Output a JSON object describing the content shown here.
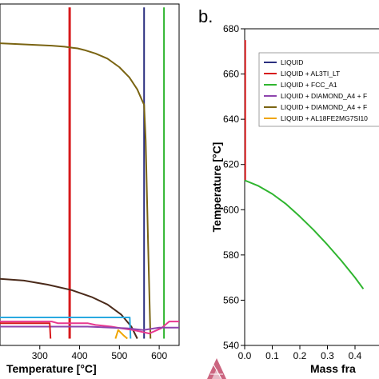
{
  "panel_labels": {
    "left": "",
    "right": "b."
  },
  "chart_data": [
    {
      "panel": "left",
      "type": "line",
      "title": "",
      "xlabel": "Temperature [°C]",
      "ylabel": "",
      "xlim": [
        200,
        650
      ],
      "x_ticks": [
        "300",
        "400",
        "500",
        "600"
      ],
      "series": [
        {
          "color": "#d7191c",
          "points": [
            [
              375,
              0.99
            ],
            [
              375,
              0.02
            ]
          ]
        },
        {
          "color": "#2b2f7f",
          "points": [
            [
              562,
              0.99
            ],
            [
              562,
              0.02
            ]
          ]
        },
        {
          "color": "#2fb52f",
          "points": [
            [
              612,
              0.99
            ],
            [
              612,
              0.02
            ]
          ]
        },
        {
          "color": "#7a6412",
          "points": [
            [
              200,
              0.885
            ],
            [
              292,
              0.88
            ],
            [
              330,
              0.878
            ],
            [
              362,
              0.875
            ],
            [
              382,
              0.872
            ],
            [
              395,
              0.87
            ],
            [
              412,
              0.865
            ],
            [
              440,
              0.855
            ],
            [
              470,
              0.84
            ],
            [
              500,
              0.815
            ],
            [
              525,
              0.785
            ],
            [
              545,
              0.75
            ],
            [
              558,
              0.715
            ],
            [
              562,
              0.705
            ],
            [
              566,
              0.6
            ],
            [
              572,
              0.3
            ],
            [
              578,
              0.02
            ]
          ]
        },
        {
          "color": "#4a2a1a",
          "points": [
            [
              200,
              0.195
            ],
            [
              260,
              0.19
            ],
            [
              320,
              0.178
            ],
            [
              380,
              0.162
            ],
            [
              430,
              0.142
            ],
            [
              470,
              0.12
            ],
            [
              505,
              0.09
            ],
            [
              530,
              0.055
            ],
            [
              545,
              0.02
            ]
          ]
        },
        {
          "color": "#29a9e0",
          "points": [
            [
              200,
              0.082
            ],
            [
              300,
              0.082
            ],
            [
              400,
              0.082
            ],
            [
              500,
              0.082
            ],
            [
              526,
              0.082
            ],
            [
              528,
              0.02
            ]
          ]
        },
        {
          "color": "#e8388f",
          "points": [
            [
              200,
              0.07
            ],
            [
              330,
              0.07
            ],
            [
              345,
              0.065
            ],
            [
              420,
              0.065
            ],
            [
              440,
              0.06
            ],
            [
              480,
              0.055
            ],
            [
              505,
              0.05
            ],
            [
              535,
              0.045
            ],
            [
              555,
              0.04
            ],
            [
              575,
              0.035
            ],
            [
              605,
              0.05
            ],
            [
              625,
              0.07
            ],
            [
              650,
              0.07
            ]
          ]
        },
        {
          "color": "#8e44ad",
          "points": [
            [
              200,
              0.055
            ],
            [
              420,
              0.055
            ],
            [
              520,
              0.05
            ],
            [
              560,
              0.045
            ],
            [
              600,
              0.052
            ],
            [
              650,
              0.052
            ]
          ]
        },
        {
          "color": "#d7191c",
          "points": [
            [
              200,
              0.065
            ],
            [
              325,
              0.065
            ],
            [
              327,
              0.02
            ]
          ]
        },
        {
          "color": "#f0a500",
          "points": [
            [
              490,
              0.02
            ],
            [
              497,
              0.045
            ],
            [
              510,
              0.03
            ],
            [
              520,
              0.02
            ]
          ]
        }
      ]
    },
    {
      "panel": "right",
      "type": "line",
      "title": "",
      "xlabel": "Mass fra",
      "ylabel": "Temperature [°C]",
      "xlim": [
        0.0,
        0.55
      ],
      "ylim": [
        540,
        680
      ],
      "x_ticks": [
        "0.0",
        "0.1",
        "0.2",
        "0.3",
        "0.4"
      ],
      "y_ticks": [
        "540",
        "560",
        "580",
        "600",
        "620",
        "640",
        "660",
        "680"
      ],
      "legend_position": "top-left",
      "legend": [
        {
          "label": "LIQUID",
          "color": "#2b2f7f"
        },
        {
          "label": "LIQUID + AL3TI_LT",
          "color": "#d7191c"
        },
        {
          "label": "LIQUID + FCC_A1",
          "color": "#2fb52f"
        },
        {
          "label": "LIQUID + DIAMOND_A4 + F",
          "color": "#8e44ad"
        },
        {
          "label": "LIQUID + DIAMOND_A4 + F",
          "color": "#7a6412"
        },
        {
          "label": "LIQUID + AL18FE2MG7SI10",
          "color": "#f0a500"
        }
      ],
      "series": [
        {
          "name": "LIQUID + AL3TI_LT",
          "color": "#d7191c",
          "points": [
            [
              0.002,
              675
            ],
            [
              0.002,
              613
            ]
          ]
        },
        {
          "name": "LIQUID + FCC_A1",
          "color": "#2fb52f",
          "points": [
            [
              0.0,
              613
            ],
            [
              0.05,
              610.5
            ],
            [
              0.1,
              607
            ],
            [
              0.15,
              602.5
            ],
            [
              0.2,
              597
            ],
            [
              0.25,
              591
            ],
            [
              0.3,
              584.5
            ],
            [
              0.35,
              577.5
            ],
            [
              0.4,
              570
            ],
            [
              0.43,
              565
            ]
          ]
        }
      ]
    }
  ]
}
